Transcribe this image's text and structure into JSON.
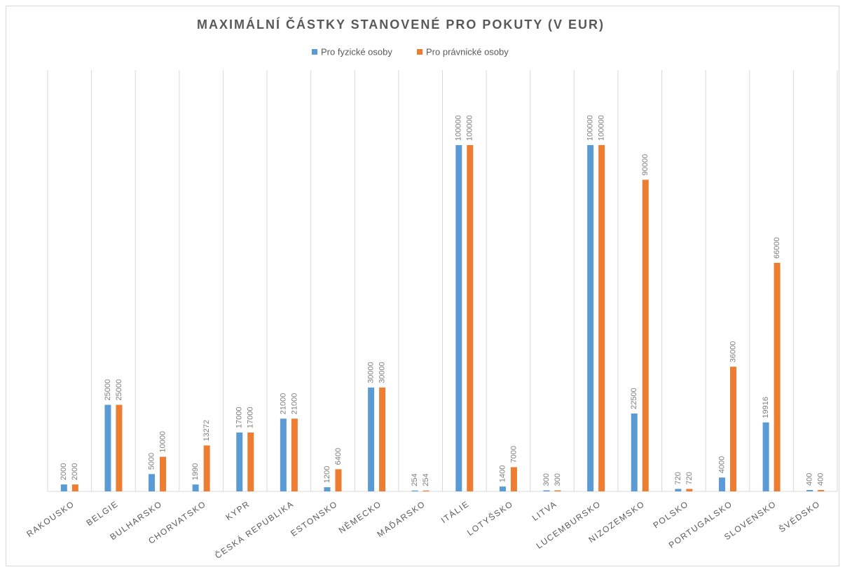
{
  "chart_data": {
    "type": "bar",
    "title": "MAXIMÁLNÍ ČÁSTKY STANOVENÉ PRO POKUTY (V EUR)",
    "categories": [
      "RAKOUSKO",
      "BELGIE",
      "BULHARSKO",
      "CHORVATSKO",
      "KYPR",
      "ČESKÁ REPUBLIKA",
      "ESTONSKO",
      "NĚMECKO",
      "MAĎARSKO",
      "ITÁLIE",
      "LOTYŠSKO",
      "LITVA",
      "LUCEMBURSKO",
      "NIZOZEMSKO",
      "POLSKO",
      "PORTUGALSKO",
      "SLOVENSKO",
      "ŠVÉDSKO"
    ],
    "series": [
      {
        "name": "Pro fyzické osoby",
        "color": "#5b9bd5",
        "values": [
          2000,
          25000,
          5000,
          1990,
          17000,
          21000,
          1200,
          30000,
          254,
          100000,
          1400,
          300,
          100000,
          22500,
          720,
          4000,
          19916,
          400
        ]
      },
      {
        "name": "Pro právnické osoby",
        "color": "#ed7d31",
        "values": [
          2000,
          25000,
          10000,
          13272,
          17000,
          21000,
          6400,
          30000,
          254,
          100000,
          7000,
          300,
          100000,
          90000,
          720,
          36000,
          66000,
          400
        ]
      }
    ],
    "ylim": [
      0,
      121660
    ],
    "grid": true,
    "legend": "top"
  }
}
